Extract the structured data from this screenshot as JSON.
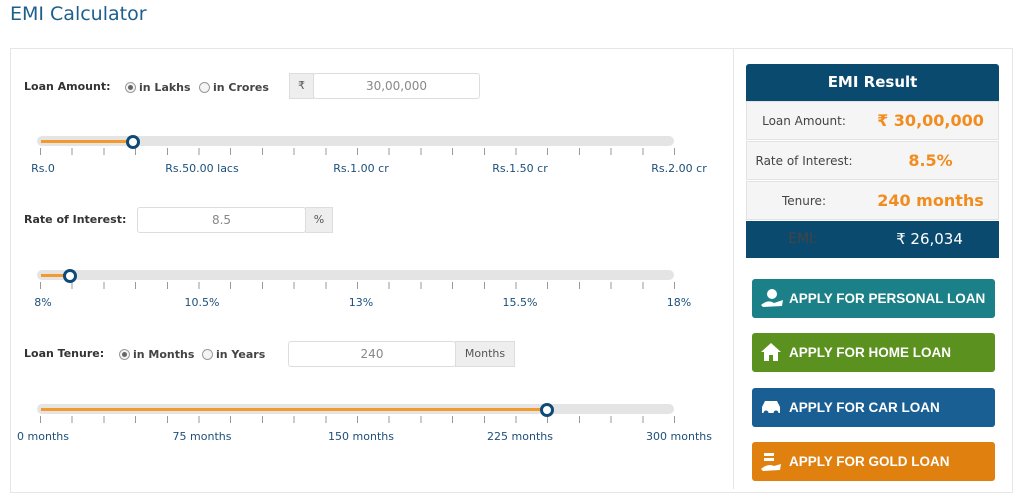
{
  "header": {
    "title": "EMI Calculator"
  },
  "loan_amount": {
    "label": "Loan Amount:",
    "options": [
      "in Lakhs",
      "in Crores"
    ],
    "currency": "₹",
    "input": "30,00,000",
    "scale": [
      "Rs.0",
      "Rs.50.00 lacs",
      "Rs.1.00 cr",
      "Rs.1.50 cr",
      "Rs.2.00 cr"
    ]
  },
  "rate": {
    "label": "Rate of Interest:",
    "input": "8.5",
    "unit": "%",
    "scale": [
      "8%",
      "10.5%",
      "13%",
      "15.5%",
      "18%"
    ]
  },
  "tenure": {
    "label": "Loan Tenure:",
    "options": [
      "in Months",
      "in Years"
    ],
    "input": "240",
    "unit": "Months",
    "scale": [
      "0 months",
      "75 months",
      "150 months",
      "225 months",
      "300 months"
    ]
  },
  "result": {
    "title": "EMI Result",
    "rows": [
      [
        "Loan Amount:",
        "₹ 30,00,000"
      ],
      [
        "Rate of Interest:",
        "8.5%"
      ],
      [
        "Tenure:",
        "240 months"
      ]
    ],
    "emi": {
      "label": "EMI:",
      "value": "₹ 26,034"
    }
  },
  "buttons": [
    "APPLY FOR PERSONAL LOAN",
    "APPLY FOR HOME LOAN",
    "APPLY FOR CAR LOAN",
    "APPLY FOR GOLD LOAN"
  ]
}
